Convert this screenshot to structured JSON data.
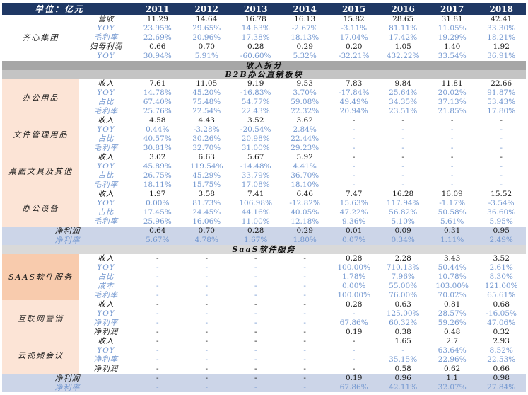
{
  "unit_label": "单位：亿元",
  "years": [
    "2011",
    "2012",
    "2013",
    "2014",
    "2015",
    "2016",
    "2017",
    "2018"
  ],
  "colors": {
    "header_bg": "#1f3864",
    "header_text": "#ffffff",
    "num_text": "#1a1a1a",
    "pct_text": "#7498d0",
    "group_peach_light": "#fce4d6",
    "group_peach_dark": "#f8cbad",
    "band_dark": "#a6a6a6",
    "band_mid": "#c4c4c4",
    "band_light": "#d9d9d9",
    "summary_bg": "#ccd5e8",
    "white": "#ffffff"
  },
  "sections": [
    {
      "type": "group",
      "label": "齐心集团",
      "bg": "white",
      "rows": [
        {
          "label": "营收",
          "kind": "num",
          "values": [
            "11.29",
            "14.64",
            "16.78",
            "16.13",
            "15.82",
            "28.65",
            "31.81",
            "42.41"
          ]
        },
        {
          "label": "YOY",
          "kind": "pct",
          "values": [
            "23.95%",
            "29.65%",
            "14.63%",
            "-2.67%",
            "-3.11%",
            "81.11%",
            "11.05%",
            "33.30%"
          ]
        },
        {
          "label": "毛利率",
          "kind": "pct",
          "values": [
            "22.69%",
            "20.96%",
            "17.38%",
            "18.13%",
            "17.04%",
            "17.42%",
            "19.29%",
            "18.21%"
          ]
        },
        {
          "label": "归母利润",
          "kind": "num",
          "values": [
            "0.66",
            "0.70",
            "0.28",
            "0.29",
            "0.20",
            "1.05",
            "1.40",
            "1.92"
          ]
        },
        {
          "label": "YOY",
          "kind": "pct",
          "values": [
            "30.94%",
            "5.91%",
            "-60.60%",
            "5.32%",
            "-32.21%",
            "432.22%",
            "33.54%",
            "36.91%"
          ]
        }
      ]
    },
    {
      "type": "band",
      "label": "收入拆分",
      "bg": "band_dark"
    },
    {
      "type": "band",
      "label": "B2B办公直销板块",
      "bg": "band_mid"
    },
    {
      "type": "group",
      "label": "办公用品",
      "bg": "group_peach_light",
      "rows": [
        {
          "label": "收入",
          "kind": "num",
          "values": [
            "7.61",
            "11.05",
            "9.19",
            "9.53",
            "7.83",
            "9.84",
            "11.81",
            "22.66"
          ]
        },
        {
          "label": "YOY",
          "kind": "pct",
          "values": [
            "14.78%",
            "45.20%",
            "-16.83%",
            "3.70%",
            "-17.84%",
            "25.64%",
            "20.02%",
            "91.87%"
          ]
        },
        {
          "label": "占比",
          "kind": "pct",
          "values": [
            "67.40%",
            "75.48%",
            "54.77%",
            "59.08%",
            "49.49%",
            "34.35%",
            "37.13%",
            "53.43%"
          ]
        },
        {
          "label": "毛利率",
          "kind": "pct",
          "values": [
            "25.76%",
            "22.54%",
            "22.43%",
            "22.32%",
            "20.94%",
            "23.51%",
            "21.85%",
            "17.80%"
          ]
        }
      ]
    },
    {
      "type": "group",
      "label": "文件管理用品",
      "bg": "group_peach_light",
      "rows": [
        {
          "label": "收入",
          "kind": "num",
          "values": [
            "4.58",
            "4.43",
            "3.52",
            "3.62",
            "-",
            "-",
            "-",
            "-"
          ]
        },
        {
          "label": "YOY",
          "kind": "pct",
          "values": [
            "0.44%",
            "-3.28%",
            "-20.54%",
            "2.84%",
            "-",
            "-",
            "-",
            "-"
          ]
        },
        {
          "label": "占比",
          "kind": "pct",
          "values": [
            "40.57%",
            "30.26%",
            "20.98%",
            "22.44%",
            "-",
            "-",
            "-",
            "-"
          ]
        },
        {
          "label": "毛利率",
          "kind": "pct",
          "values": [
            "30.81%",
            "32.70%",
            "31.00%",
            "29.23%",
            "-",
            "-",
            "-",
            "-"
          ]
        }
      ]
    },
    {
      "type": "group",
      "label": "桌面文具及其他",
      "bg": "group_peach_light",
      "rows": [
        {
          "label": "收入",
          "kind": "num",
          "values": [
            "3.02",
            "6.63",
            "5.67",
            "5.92",
            "-",
            "-",
            "-",
            "-"
          ]
        },
        {
          "label": "YOY",
          "kind": "pct",
          "values": [
            "45.89%",
            "119.54%",
            "-14.48%",
            "4.41%",
            "-",
            "-",
            "-",
            "-"
          ]
        },
        {
          "label": "占比",
          "kind": "pct",
          "values": [
            "26.75%",
            "45.29%",
            "33.79%",
            "36.70%",
            "-",
            "-",
            "-",
            "-"
          ]
        },
        {
          "label": "毛利率",
          "kind": "pct",
          "values": [
            "18.11%",
            "15.75%",
            "17.08%",
            "18.10%",
            "-",
            "-",
            "-",
            "-"
          ]
        }
      ]
    },
    {
      "type": "group",
      "label": "办公设备",
      "bg": "group_peach_light",
      "rows": [
        {
          "label": "收入",
          "kind": "num",
          "values": [
            "1.97",
            "3.58",
            "7.41",
            "6.46",
            "7.47",
            "16.28",
            "16.09",
            "15.52"
          ]
        },
        {
          "label": "YOY",
          "kind": "pct",
          "values": [
            "0.00%",
            "81.73%",
            "106.98%",
            "-12.82%",
            "15.63%",
            "117.94%",
            "-1.17%",
            "-3.54%"
          ]
        },
        {
          "label": "占比",
          "kind": "pct",
          "values": [
            "17.45%",
            "24.45%",
            "44.16%",
            "40.05%",
            "47.22%",
            "56.82%",
            "50.58%",
            "36.60%"
          ]
        },
        {
          "label": "毛利率",
          "kind": "pct",
          "values": [
            "25.96%",
            "16.06%",
            "11.00%",
            "12.18%",
            "9.36%",
            "5.10%",
            "5.61%",
            "5.95%"
          ]
        }
      ]
    },
    {
      "type": "summary",
      "rows": [
        {
          "label": "净利润",
          "kind": "num",
          "values": [
            "0.64",
            "0.70",
            "0.28",
            "0.29",
            "0.01",
            "0.09",
            "0.31",
            "0.95"
          ]
        },
        {
          "label": "净利率",
          "kind": "pct",
          "values": [
            "5.67%",
            "4.78%",
            "1.67%",
            "1.80%",
            "0.07%",
            "0.34%",
            "1.11%",
            "2.49%"
          ]
        }
      ]
    },
    {
      "type": "band",
      "label": "SaaS软件服务",
      "bg": "band_light"
    },
    {
      "type": "group",
      "label": "SAAS软件服务",
      "bg": "group_peach_dark",
      "rows": [
        {
          "label": "收入",
          "kind": "num",
          "values": [
            "-",
            "-",
            "-",
            "-",
            "0.28",
            "2.28",
            "3.43",
            "3.52"
          ]
        },
        {
          "label": "YOY",
          "kind": "pct",
          "values": [
            "-",
            "-",
            "-",
            "-",
            "100.00%",
            "710.13%",
            "50.44%",
            "2.61%"
          ]
        },
        {
          "label": "占比",
          "kind": "pct",
          "values": [
            "-",
            "-",
            "-",
            "-",
            "1.78%",
            "7.96%",
            "10.78%",
            "8.30%"
          ]
        },
        {
          "label": "成本",
          "kind": "pct",
          "values": [
            "-",
            "-",
            "-",
            "-",
            "0.00%",
            "55.00%",
            "103.00%",
            "121.00%"
          ]
        },
        {
          "label": "毛利率",
          "kind": "pct",
          "values": [
            "-",
            "-",
            "-",
            "-",
            "100.00%",
            "76.00%",
            "70.02%",
            "65.61%"
          ]
        }
      ]
    },
    {
      "type": "group",
      "label": "互联网营销",
      "bg": "group_peach_light",
      "rows": [
        {
          "label": "收入",
          "kind": "num",
          "values": [
            "-",
            "-",
            "-",
            "-",
            "0.28",
            "0.63",
            "0.81",
            "0.68"
          ]
        },
        {
          "label": "YOY",
          "kind": "pct",
          "values": [
            "-",
            "-",
            "-",
            "-",
            "-",
            "125.00%",
            "28.57%",
            "-16.05%"
          ]
        },
        {
          "label": "净利率",
          "kind": "pct",
          "values": [
            "-",
            "-",
            "-",
            "-",
            "67.86%",
            "60.32%",
            "59.26%",
            "47.06%"
          ]
        },
        {
          "label": "净利润",
          "kind": "num",
          "values": [
            "-",
            "-",
            "-",
            "-",
            "0.19",
            "0.38",
            "0.48",
            "0.32"
          ]
        }
      ]
    },
    {
      "type": "group",
      "label": "云视频会议",
      "bg": "group_peach_light",
      "rows": [
        {
          "label": "收入",
          "kind": "num",
          "values": [
            "-",
            "-",
            "-",
            "-",
            "-",
            "1.65",
            "2.7",
            "2.93"
          ]
        },
        {
          "label": "YOY",
          "kind": "pct",
          "values": [
            "-",
            "-",
            "-",
            "-",
            "-",
            "-",
            "63.64%",
            "8.52%"
          ]
        },
        {
          "label": "净利率",
          "kind": "pct",
          "values": [
            "-",
            "-",
            "-",
            "-",
            "-",
            "35.15%",
            "22.96%",
            "22.53%"
          ]
        },
        {
          "label": "净利润",
          "kind": "num",
          "values": [
            "-",
            "-",
            "-",
            "-",
            "-",
            "0.58",
            "0.62",
            "0.66"
          ]
        }
      ]
    },
    {
      "type": "summary",
      "rows": [
        {
          "label": "净利润",
          "kind": "num",
          "values": [
            "-",
            "-",
            "-",
            "-",
            "0.19",
            "0.96",
            "1.1",
            "0.98"
          ]
        },
        {
          "label": "净利率",
          "kind": "pct",
          "values": [
            "-",
            "-",
            "-",
            "-",
            "67.86%",
            "42.11%",
            "32.07%",
            "27.84%"
          ]
        }
      ]
    }
  ]
}
